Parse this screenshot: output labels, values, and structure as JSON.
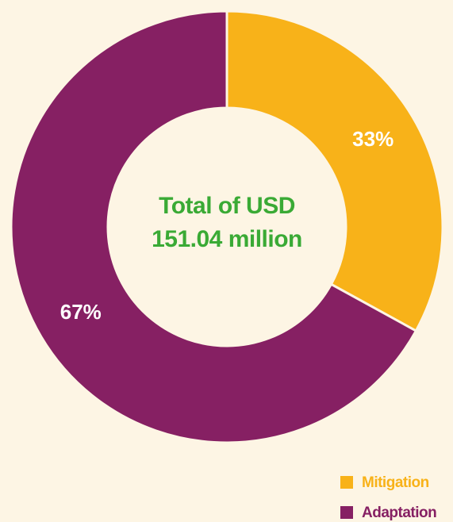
{
  "chart_data": {
    "type": "donut",
    "center_text": [
      "Total of USD",
      "151.04 million"
    ],
    "categories": [
      "Mitigation",
      "Adaptation"
    ],
    "values": [
      33,
      67
    ],
    "value_labels": [
      "33%",
      "67%"
    ],
    "colors": [
      "#f8b219",
      "#862063"
    ],
    "legend": "bottom-right"
  }
}
